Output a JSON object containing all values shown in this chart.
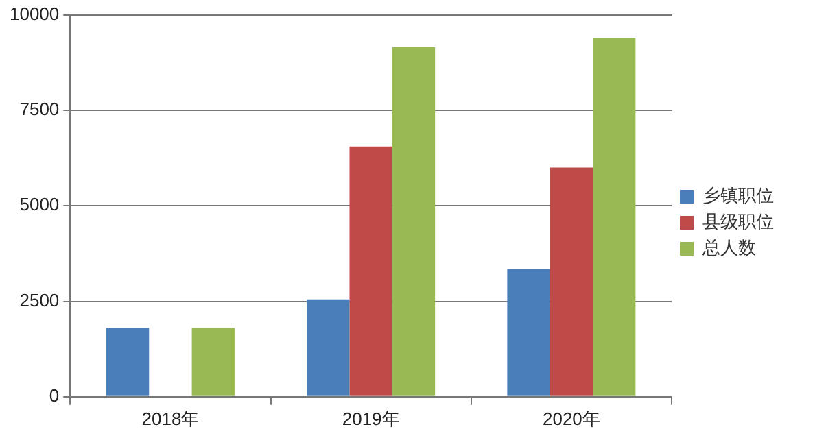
{
  "chart_data": {
    "type": "bar",
    "categories": [
      "2018年",
      "2019年",
      "2020年"
    ],
    "series": [
      {
        "name": "乡镇职位",
        "color": "#4a7ebb",
        "values": [
          1800,
          2550,
          3350
        ]
      },
      {
        "name": "县级职位",
        "color": "#be4b48",
        "values": [
          null,
          6550,
          6000
        ]
      },
      {
        "name": "总人数",
        "color": "#98b954",
        "values": [
          1800,
          9150,
          9400
        ]
      }
    ],
    "ylim": [
      0,
      10000
    ],
    "yticks": [
      0,
      2500,
      5000,
      7500,
      10000
    ],
    "grid": "y",
    "legend": "right"
  }
}
